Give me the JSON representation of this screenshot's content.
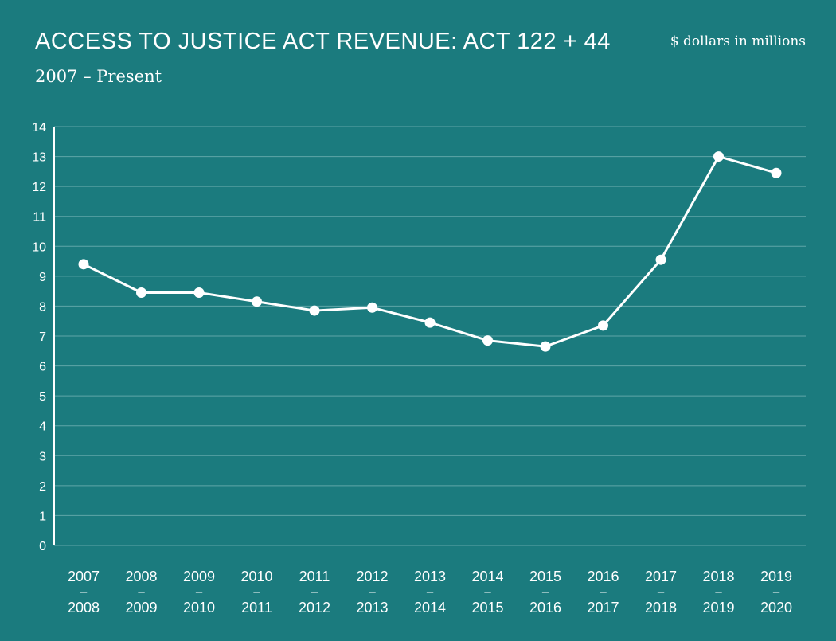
{
  "header": {
    "title": "ACCESS TO JUSTICE ACT REVENUE: ACT 122 + 44",
    "subtitle": "2007 – Present",
    "units": "$ dollars in millions"
  },
  "colors": {
    "background": "#1b7b7e",
    "line": "#ffffff",
    "grid": "#5fa6a8"
  },
  "chart_data": {
    "type": "line",
    "title": "ACCESS TO JUSTICE ACT REVENUE: ACT 122 + 44",
    "subtitle": "2007 – Present",
    "ylabel": "$ dollars in millions",
    "xlabel": "",
    "ylim": [
      0,
      14
    ],
    "yticks": [
      0,
      1,
      2,
      3,
      4,
      5,
      6,
      7,
      8,
      9,
      10,
      11,
      12,
      13,
      14
    ],
    "grid": true,
    "categories": [
      [
        "2007",
        "–",
        "2008"
      ],
      [
        "2008",
        "–",
        "2009"
      ],
      [
        "2009",
        "–",
        "2010"
      ],
      [
        "2010",
        "–",
        "2011"
      ],
      [
        "2011",
        "–",
        "2012"
      ],
      [
        "2012",
        "–",
        "2013"
      ],
      [
        "2013",
        "–",
        "2014"
      ],
      [
        "2014",
        "–",
        "2015"
      ],
      [
        "2015",
        "–",
        "2016"
      ],
      [
        "2016",
        "–",
        "2017"
      ],
      [
        "2017",
        "–",
        "2018"
      ],
      [
        "2018",
        "–",
        "2019"
      ],
      [
        "2019",
        "–",
        "2020"
      ]
    ],
    "series": [
      {
        "values": [
          9.4,
          8.45,
          8.45,
          8.15,
          7.85,
          7.95,
          7.45,
          6.85,
          6.65,
          7.35,
          9.55,
          13.0,
          12.45
        ]
      }
    ]
  }
}
